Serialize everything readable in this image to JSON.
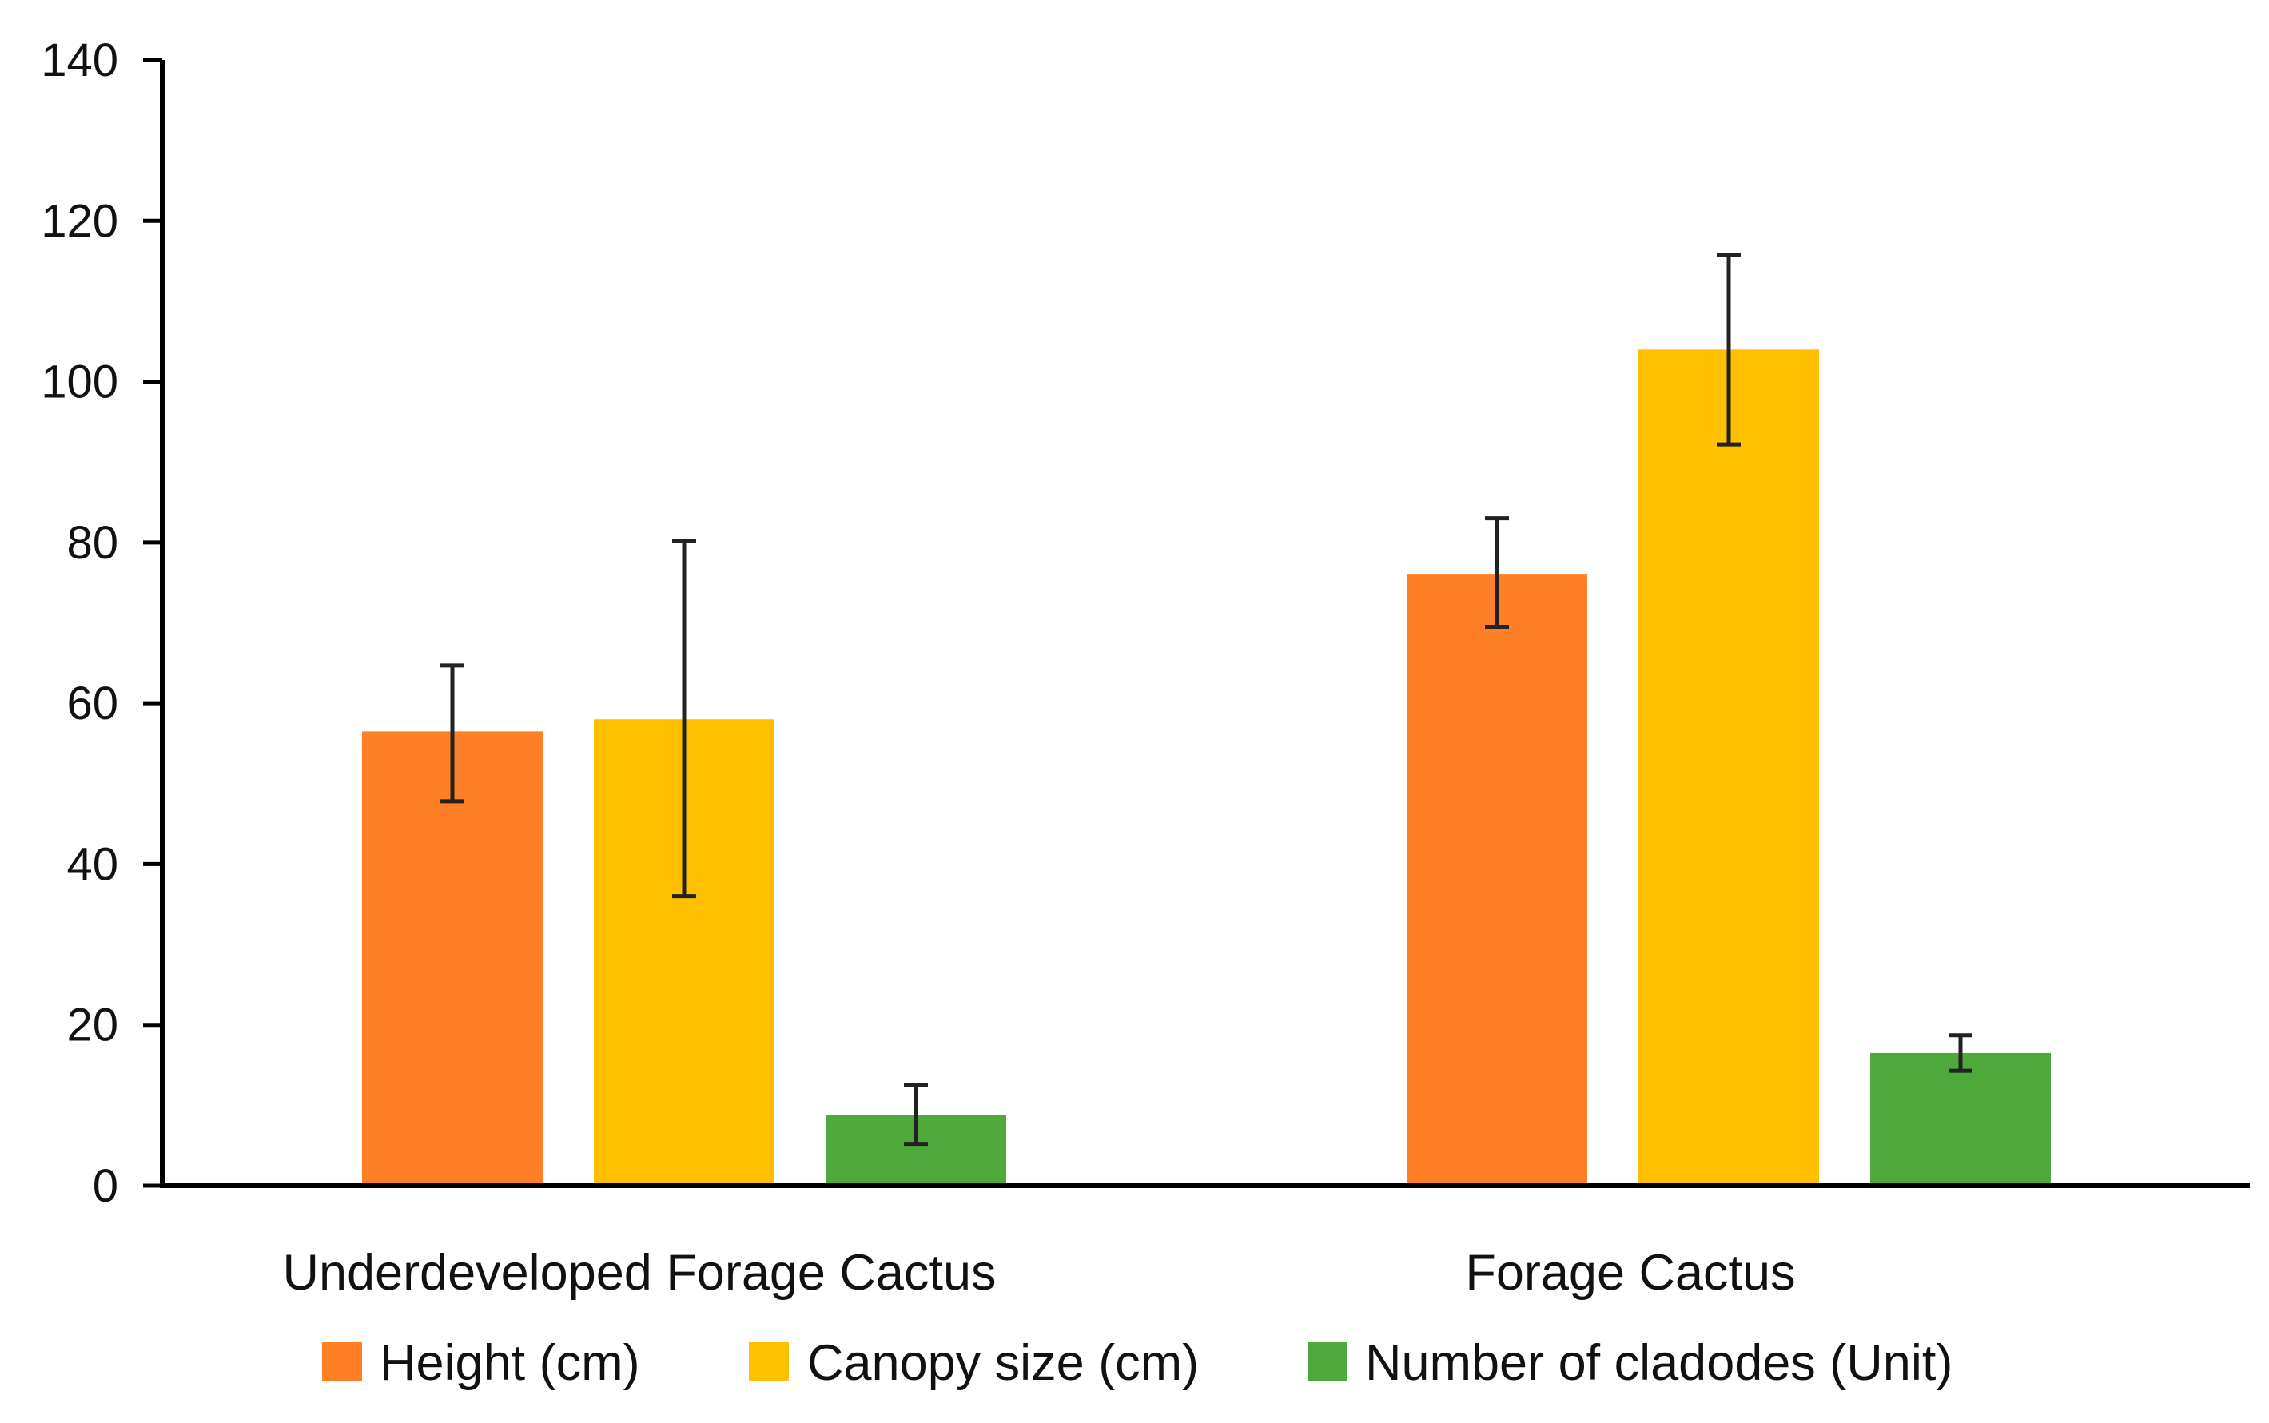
{
  "chart_data": {
    "type": "bar",
    "title": "",
    "xlabel": "",
    "ylabel": "",
    "ylim": [
      0,
      140
    ],
    "yticks": [
      0,
      20,
      40,
      60,
      80,
      100,
      120,
      140
    ],
    "grid": false,
    "legend_position": "bottom-center",
    "categories": [
      "Underdeveloped Forage Cactus",
      "Forage Cactus"
    ],
    "series": [
      {
        "name": "Height (cm)",
        "color": "#FF7F27",
        "values": [
          56.5,
          76
        ],
        "error_low": [
          47.8,
          69.5
        ],
        "error_high": [
          64.7,
          83
        ]
      },
      {
        "name": "Canopy size (cm)",
        "color": "#FFC000",
        "values": [
          58,
          104
        ],
        "error_low": [
          36,
          92.2
        ],
        "error_high": [
          80.2,
          115.7
        ]
      },
      {
        "name": "Number of cladodes (Unit)",
        "color": "#4EA83A",
        "values": [
          8.8,
          16.5
        ],
        "error_low": [
          5.2,
          14.3
        ],
        "error_high": [
          12.5,
          18.7
        ]
      }
    ]
  }
}
